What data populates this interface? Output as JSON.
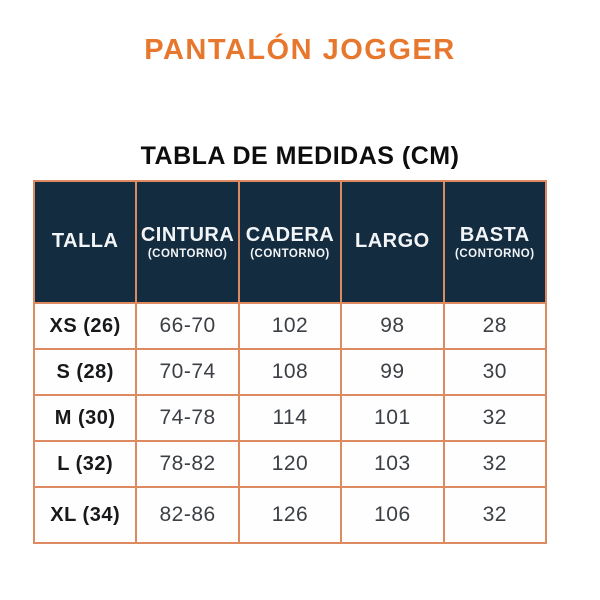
{
  "page": {
    "title": "PANTALÓN JOGGER",
    "table_title": "TABLA DE MEDIDAS (CM)"
  },
  "colors": {
    "accent_orange": "#e8772e",
    "header_navy": "#142c40",
    "border_orange": "#dd8a60",
    "header_text": "#f2f5f7",
    "body_text": "#3c4045"
  },
  "table": {
    "headers": [
      {
        "label": "TALLA",
        "sub": ""
      },
      {
        "label": "CINTURA",
        "sub": "(CONTORNO)"
      },
      {
        "label": "CADERA",
        "sub": "(CONTORNO)"
      },
      {
        "label": "LARGO",
        "sub": ""
      },
      {
        "label": "BASTA",
        "sub": "(CONTORNO)"
      }
    ],
    "rows": [
      {
        "talla": "XS (26)",
        "cintura": "66-70",
        "cadera": "102",
        "largo": "98",
        "basta": "28"
      },
      {
        "talla": "S (28)",
        "cintura": "70-74",
        "cadera": "108",
        "largo": "99",
        "basta": "30"
      },
      {
        "talla": "M (30)",
        "cintura": "74-78",
        "cadera": "114",
        "largo": "101",
        "basta": "32"
      },
      {
        "talla": "L (32)",
        "cintura": "78-82",
        "cadera": "120",
        "largo": "103",
        "basta": "32"
      },
      {
        "talla": "XL (34)",
        "cintura": "82-86",
        "cadera": "126",
        "largo": "106",
        "basta": "32"
      }
    ]
  }
}
